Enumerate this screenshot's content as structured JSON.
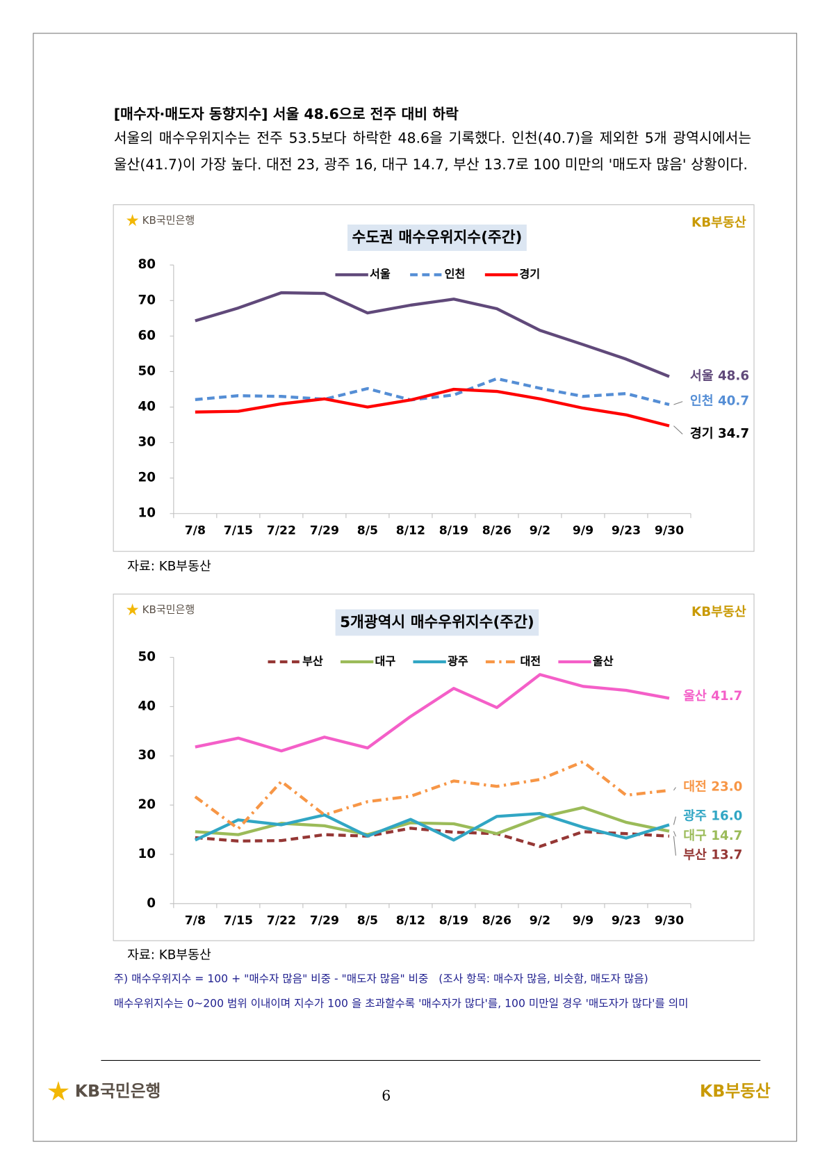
{
  "header": {
    "heading": "[매수자·매도자 동향지수] 서울 48.6으로 전주 대비 하락",
    "paragraph": "서울의 매수우위지수는 전주 53.5보다 하락한 48.6을 기록했다. 인천(40.7)을 제외한 5개 광역시에서는 울산(41.7)이 가장 높다. 대전 23, 광주 16, 대구 14.7, 부산 13.7로 100 미만의 '매도자 많음' 상황이다."
  },
  "brand": {
    "bank": "KB국민은행",
    "realestate": "KB부동산"
  },
  "chart_data": [
    {
      "type": "line",
      "title": "수도권 매수우위지수(주간)",
      "source": "자료: KB부동산",
      "categories": [
        "7/8",
        "7/15",
        "7/22",
        "7/29",
        "8/5",
        "8/12",
        "8/19",
        "8/26",
        "9/2",
        "9/9",
        "9/23",
        "9/30"
      ],
      "ylim": [
        10,
        80
      ],
      "yticks": [
        10,
        20,
        30,
        40,
        50,
        60,
        70,
        80
      ],
      "grid": false,
      "series": [
        {
          "name": "서울",
          "color": "#60497a",
          "dash": "solid",
          "values": [
            64.3,
            67.9,
            72.2,
            72.0,
            66.5,
            68.7,
            70.4,
            67.7,
            61.6,
            57.6,
            53.5,
            48.6
          ]
        },
        {
          "name": "인천",
          "color": "#558ed5",
          "dash": "dashed",
          "values": [
            42.1,
            43.2,
            43.0,
            42.2,
            45.2,
            42.0,
            43.4,
            48.0,
            45.3,
            43.0,
            43.8,
            40.7
          ]
        },
        {
          "name": "경기",
          "color": "#ff0000",
          "dash": "solid",
          "values": [
            38.6,
            38.8,
            40.9,
            42.3,
            40.0,
            42.0,
            45.0,
            44.4,
            42.3,
            39.7,
            37.8,
            34.7
          ]
        }
      ]
    },
    {
      "type": "line",
      "title": "5개광역시 매수우위지수(주간)",
      "source": "자료: KB부동산",
      "categories": [
        "7/8",
        "7/15",
        "7/22",
        "7/29",
        "8/5",
        "8/12",
        "8/19",
        "8/26",
        "9/2",
        "9/9",
        "9/23",
        "9/30"
      ],
      "ylim": [
        0,
        50
      ],
      "yticks": [
        0,
        10,
        20,
        30,
        40,
        50
      ],
      "grid": false,
      "series": [
        {
          "name": "부산",
          "color": "#953735",
          "dash": "dashed",
          "values": [
            13.4,
            12.7,
            12.8,
            14.0,
            13.7,
            15.3,
            14.5,
            14.2,
            11.6,
            14.6,
            14.2,
            13.7
          ]
        },
        {
          "name": "대구",
          "color": "#9bbb59",
          "dash": "solid",
          "values": [
            14.6,
            14.0,
            16.3,
            15.8,
            14.0,
            16.4,
            16.2,
            14.2,
            17.5,
            19.5,
            16.5,
            14.7
          ]
        },
        {
          "name": "광주",
          "color": "#31a6c4",
          "dash": "solid",
          "values": [
            12.9,
            17.0,
            16.0,
            18.0,
            13.7,
            17.1,
            12.9,
            17.7,
            18.3,
            15.5,
            13.3,
            16
          ],
          "value_labels": [
            null,
            null,
            null,
            null,
            null,
            null,
            null,
            null,
            null,
            null,
            null,
            "16.0"
          ]
        },
        {
          "name": "대전",
          "color": "#f79646",
          "dash": "dashdot",
          "values": [
            21.7,
            15.2,
            24.8,
            18.0,
            20.7,
            21.8,
            24.9,
            23.8,
            25.2,
            28.8,
            22.0,
            23
          ],
          "value_labels": [
            null,
            null,
            null,
            null,
            null,
            null,
            null,
            null,
            null,
            null,
            null,
            "23.0"
          ]
        },
        {
          "name": "울산",
          "color": "#f45fc8",
          "dash": "solid",
          "values": [
            31.8,
            33.6,
            31.0,
            33.8,
            31.6,
            38.0,
            43.7,
            39.8,
            46.5,
            44.1,
            43.3,
            41.7
          ]
        }
      ]
    }
  ],
  "notes": [
    "주) 매수우위지수 = 100 + \"매수자 많음\" 비중 - \"매도자 많음\" 비중   (조사 항목: 매수자 많음, 비슷함, 매도자 많음)",
    "매수우위지수는 0~200 범위 이내이며 지수가 100 을 초과할수록 '매수자가 많다'를, 100 미만일 경우 '매도자가 많다'를 의미"
  ],
  "page_number": "6"
}
